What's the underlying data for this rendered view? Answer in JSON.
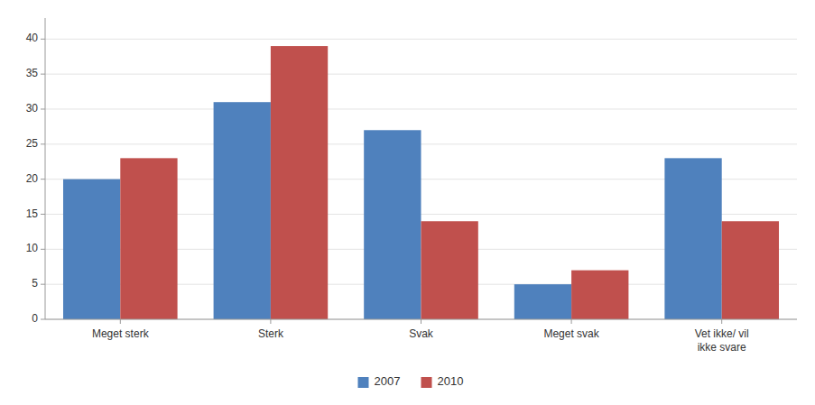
{
  "chart_data": {
    "type": "bar",
    "categories": [
      "Meget sterk",
      "Sterk",
      "Svak",
      "Meget svak",
      "Vet ikke/ vil\nikke svare"
    ],
    "series": [
      {
        "name": "2007",
        "color": "#4F81BD",
        "values": [
          20,
          31,
          27,
          5,
          23
        ]
      },
      {
        "name": "2010",
        "color": "#C0504D",
        "values": [
          23,
          39,
          14,
          7,
          14
        ]
      }
    ],
    "ylim": [
      0,
      43
    ],
    "yticks": [
      0,
      5,
      10,
      15,
      20,
      25,
      30,
      35,
      40
    ],
    "grid": true,
    "legend": "bottom"
  }
}
